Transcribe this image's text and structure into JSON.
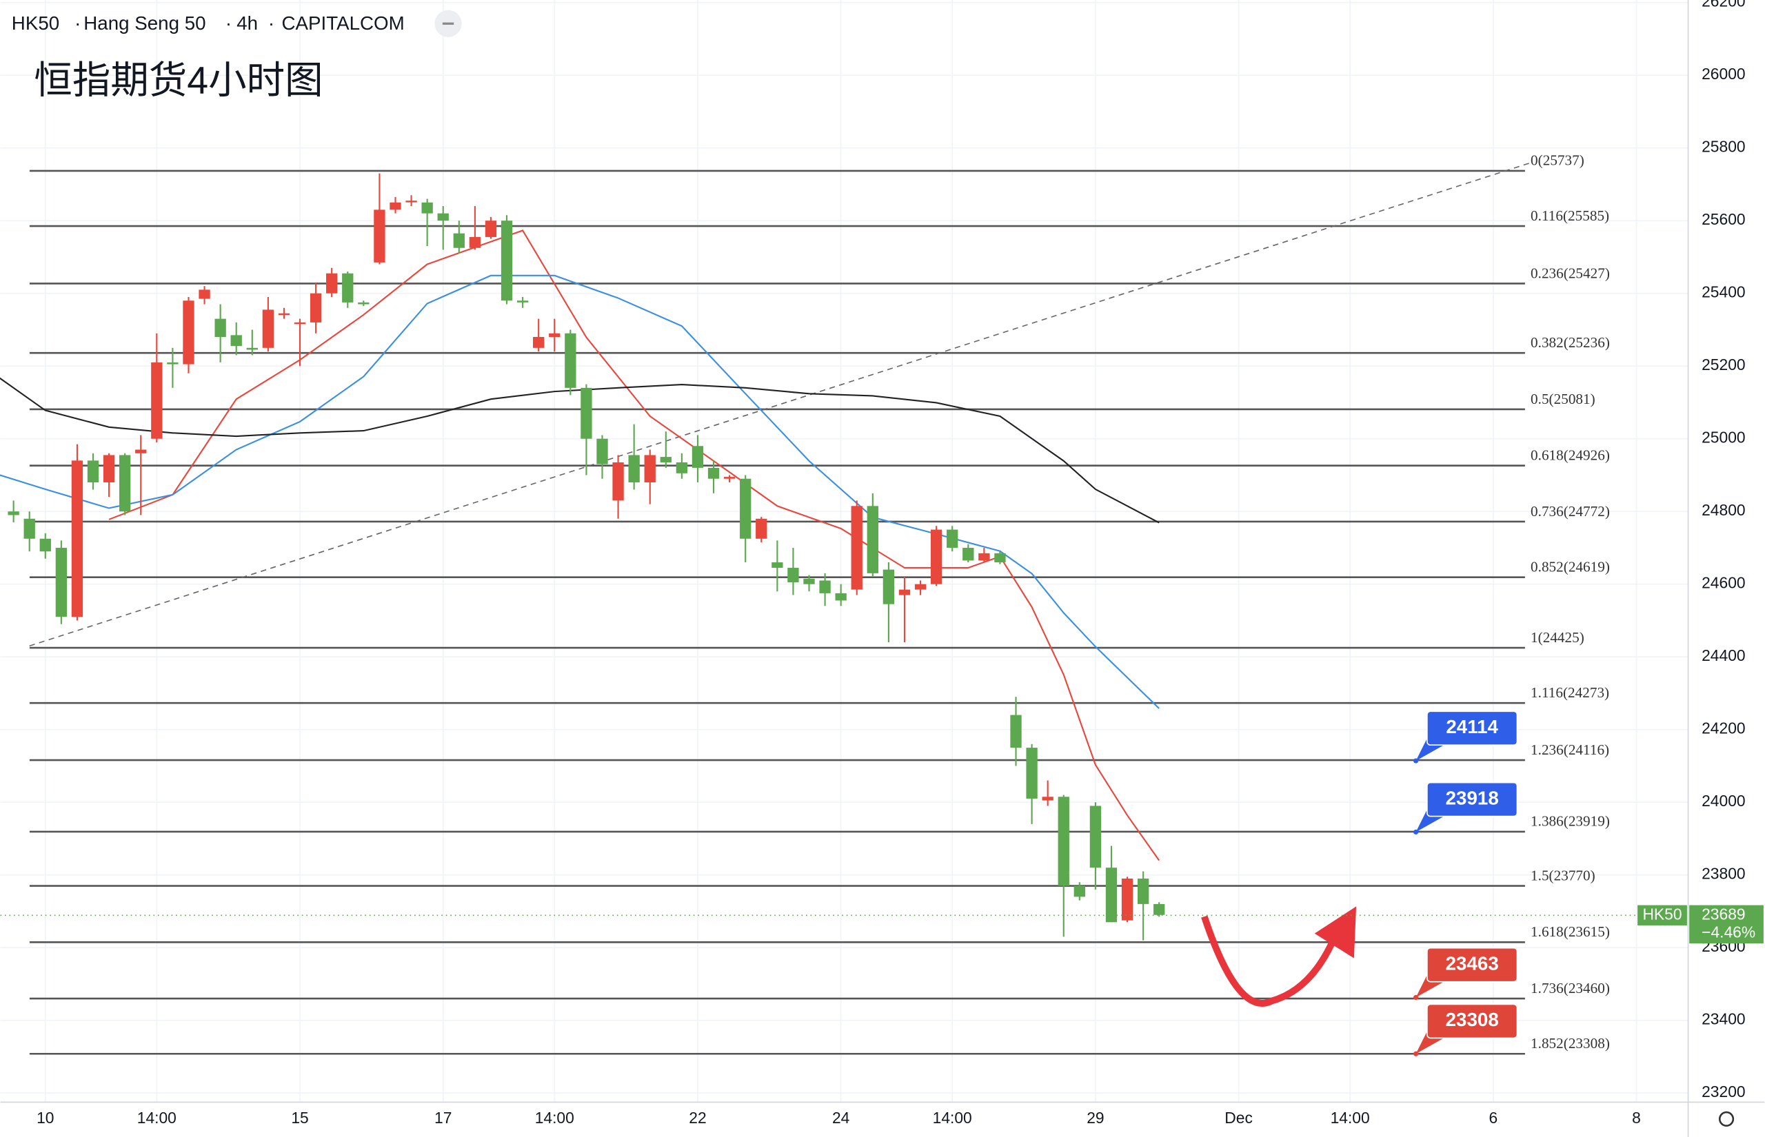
{
  "header": {
    "symbol": "HK50",
    "name": "Hang Seng 50",
    "interval": "4h",
    "source": "CAPITALCOM"
  },
  "chart_data": {
    "type": "candlestick",
    "title": "恒指期货4小时图",
    "up_color": "#e8473b",
    "down_color": "#5ca84f",
    "xlim": [
      -2.83,
      103.25
    ],
    "ylim": [
      23175,
      26207
    ],
    "yticks": [
      23200,
      23400,
      23600,
      23800,
      24000,
      24200,
      24400,
      24600,
      24800,
      25000,
      25200,
      25400,
      25600,
      25800,
      26000,
      26200
    ],
    "xticks": [
      {
        "value": 0,
        "label": "10"
      },
      {
        "value": 7,
        "label": "14:00"
      },
      {
        "value": 16,
        "label": "15"
      },
      {
        "value": 25,
        "label": "17"
      },
      {
        "value": 32,
        "label": "14:00"
      },
      {
        "value": 41,
        "label": "22"
      },
      {
        "value": 50,
        "label": "24"
      },
      {
        "value": 57,
        "label": "14:00"
      },
      {
        "value": 66,
        "label": "29"
      },
      {
        "value": 75,
        "label": "Dec"
      },
      {
        "value": 82,
        "label": "14:00"
      },
      {
        "value": 91,
        "label": "6"
      },
      {
        "value": 100,
        "label": "8"
      }
    ],
    "x": [
      -2,
      -1,
      0,
      1,
      2,
      3,
      4,
      5,
      6,
      7,
      8,
      9,
      10,
      11,
      12,
      13,
      14,
      15,
      16,
      17,
      18,
      19,
      20,
      21,
      22,
      23,
      24,
      25,
      26,
      27,
      28,
      29,
      30,
      31,
      32,
      33,
      34,
      35,
      36,
      37,
      38,
      39,
      40,
      41,
      42,
      43,
      44,
      45,
      46,
      47,
      48,
      49,
      50,
      51,
      52,
      53,
      54,
      55,
      56,
      57,
      58,
      59,
      60,
      61,
      62,
      63,
      64,
      65,
      66,
      67,
      68,
      69,
      70
    ],
    "open": [
      24800,
      24780,
      24725,
      24700,
      24510,
      24940,
      24880,
      24955,
      24960,
      25000,
      25210,
      25205,
      25385,
      25330,
      25285,
      25250,
      25250,
      25345,
      25320,
      25320,
      25400,
      25455,
      25375,
      25485,
      25630,
      25655,
      25650,
      25620,
      25565,
      25525,
      25555,
      25600,
      25380,
      25250,
      25280,
      25290,
      25140,
      25000,
      24830,
      24955,
      24880,
      24950,
      24935,
      24980,
      24920,
      24890,
      24890,
      24725,
      24660,
      24645,
      24615,
      24610,
      24575,
      24585,
      24815,
      24640,
      24570,
      24585,
      24600,
      24750,
      24700,
      24665,
      24685,
      24240,
      24150,
      24005,
      24015,
      23770,
      23990,
      23820,
      23675,
      23790,
      23720
    ],
    "high": [
      24830,
      24800,
      24740,
      24720,
      24985,
      24960,
      24960,
      24960,
      25010,
      25290,
      25250,
      25390,
      25420,
      25370,
      25320,
      25300,
      25390,
      25360,
      25330,
      25430,
      25470,
      25460,
      25380,
      25730,
      25665,
      25670,
      25660,
      25640,
      25600,
      25640,
      25610,
      25615,
      25390,
      25330,
      25330,
      25300,
      25150,
      25010,
      24955,
      25040,
      24970,
      25020,
      24960,
      25010,
      24940,
      24900,
      24900,
      24785,
      24720,
      24700,
      24625,
      24630,
      24600,
      24830,
      24850,
      24660,
      24620,
      24610,
      24760,
      24760,
      24710,
      24700,
      24690,
      24290,
      24160,
      24060,
      24020,
      23780,
      24000,
      23880,
      23795,
      23810,
      23725
    ],
    "low": [
      24770,
      24690,
      24670,
      24490,
      24500,
      24860,
      24840,
      24790,
      24790,
      24990,
      25140,
      25180,
      25370,
      25210,
      25230,
      25230,
      25240,
      25330,
      25200,
      25290,
      25390,
      25360,
      25365,
      25480,
      25620,
      25640,
      25530,
      25520,
      25510,
      25520,
      25550,
      25370,
      25360,
      25240,
      25240,
      25120,
      24900,
      24890,
      24780,
      24860,
      24820,
      24920,
      24890,
      24880,
      24850,
      24880,
      24660,
      24715,
      24580,
      24570,
      24580,
      24540,
      24540,
      24570,
      24620,
      24440,
      24440,
      24570,
      24595,
      24690,
      24660,
      24660,
      24655,
      24100,
      23940,
      23990,
      23630,
      23730,
      23760,
      23670,
      23670,
      23620,
      23685
    ],
    "close": [
      24790,
      24725,
      24690,
      24510,
      24940,
      24880,
      24955,
      24800,
      24970,
      25210,
      25205,
      25380,
      25410,
      25280,
      25255,
      25245,
      25355,
      25345,
      25320,
      25400,
      25455,
      25375,
      25370,
      25630,
      25650,
      25655,
      25620,
      25600,
      25525,
      25555,
      25600,
      25380,
      25375,
      25280,
      25290,
      25140,
      25000,
      24930,
      24935,
      24880,
      24955,
      24935,
      24905,
      24920,
      24890,
      24895,
      24725,
      24780,
      24645,
      24605,
      24600,
      24575,
      24555,
      24815,
      24630,
      24545,
      24585,
      24600,
      24750,
      24700,
      24665,
      24685,
      24660,
      24150,
      24010,
      24015,
      23770,
      23740,
      23820,
      23670,
      23790,
      23720,
      23690
    ],
    "moving_averages": [
      {
        "color": "#e8473b",
        "x": [
          4,
          8,
          12,
          16,
          20,
          24,
          28,
          30,
          34,
          38,
          42,
          46,
          50,
          54,
          58,
          60,
          62,
          64,
          66,
          68,
          70
        ],
        "values": [
          24778,
          24846,
          25109,
          25217,
          25341,
          25480,
          25542,
          25573,
          25279,
          25062,
          24939,
          24815,
          24753,
          24645,
          24645,
          24676,
          24537,
          24351,
          24103,
          23964,
          23840
        ]
      },
      {
        "color": "#3b8fe0",
        "x": [
          -3,
          0,
          4,
          8,
          12,
          16,
          20,
          24,
          28,
          32,
          36,
          40,
          44,
          48,
          52,
          56,
          60,
          62,
          64,
          66,
          70
        ],
        "values": [
          24902,
          24861,
          24809,
          24846,
          24970,
          25047,
          25171,
          25372,
          25449,
          25449,
          25387,
          25310,
          25124,
          24939,
          24784,
          24738,
          24691,
          24629,
          24521,
          24428,
          24258
        ]
      },
      {
        "color": "#222222",
        "x": [
          -3,
          0,
          4,
          8,
          12,
          16,
          20,
          24,
          28,
          32,
          36,
          40,
          44,
          48,
          52,
          56,
          60,
          64,
          66,
          70
        ],
        "values": [
          25171,
          25078,
          25032,
          25016,
          25007,
          25016,
          25022,
          25062,
          25109,
          25130,
          25140,
          25149,
          25140,
          25124,
          25118,
          25099,
          25062,
          24939,
          24861,
          24769
        ]
      }
    ],
    "fib_levels": [
      {
        "value": 25737,
        "label": "0(25737)"
      },
      {
        "value": 25585,
        "label": "0.116(25585)"
      },
      {
        "value": 25427,
        "label": "0.236(25427)"
      },
      {
        "value": 25236,
        "label": "0.382(25236)"
      },
      {
        "value": 25081,
        "label": "0.5(25081)"
      },
      {
        "value": 24926,
        "label": "0.618(24926)"
      },
      {
        "value": 24772,
        "label": "0.736(24772)"
      },
      {
        "value": 24619,
        "label": "0.852(24619)"
      },
      {
        "value": 24425,
        "label": "1(24425)"
      },
      {
        "value": 24273,
        "label": "1.116(24273)"
      },
      {
        "value": 24116,
        "label": "1.236(24116)"
      },
      {
        "value": 23919,
        "label": "1.386(23919)"
      },
      {
        "value": 23770,
        "label": "1.5(23770)"
      },
      {
        "value": 23615,
        "label": "1.618(23615)"
      },
      {
        "value": 23460,
        "label": "1.736(23460)"
      },
      {
        "value": 23308,
        "label": "1.852(23308)"
      }
    ],
    "trendline": {
      "x": [
        -1,
        93.4
      ],
      "values": [
        24430,
        25760
      ]
    },
    "callouts": [
      {
        "value": 24114,
        "color": "#2f5fe8"
      },
      {
        "value": 23918,
        "color": "#2f5fe8"
      },
      {
        "value": 23463,
        "color": "#e0453a"
      },
      {
        "value": 23308,
        "color": "#e0453a"
      }
    ],
    "last_price": {
      "symbol": "HK50",
      "value": 23689,
      "change": "−4.46%",
      "color": "#5ca84f"
    }
  }
}
